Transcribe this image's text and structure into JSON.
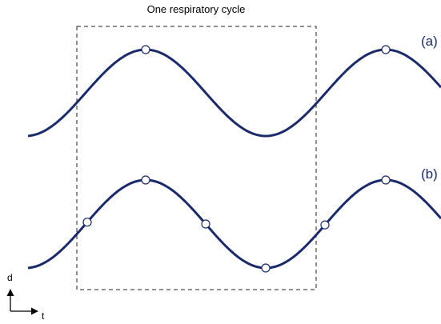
{
  "title": "One respiratory cycle",
  "labels": {
    "a": "(a)",
    "b": "(b)"
  },
  "axes": {
    "y": "d",
    "x": "t"
  }
}
